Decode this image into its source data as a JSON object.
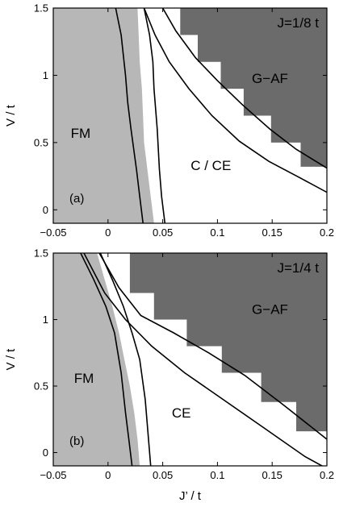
{
  "colors": {
    "fm": "#b7b7b7",
    "gaf": "#6b6b6b",
    "ce": "#ffffff",
    "boundary": "#000000"
  },
  "chart_data": [
    {
      "type": "area",
      "panel": "(a)",
      "annotation": "J=1/8 t",
      "xlabel": "",
      "ylabel": "V / t",
      "xlim": [
        -0.05,
        0.2
      ],
      "ylim": [
        -0.1,
        1.5
      ],
      "xticks": [
        -0.05,
        0,
        0.05,
        0.1,
        0.15,
        0.2
      ],
      "xtick_labels": [
        "−0.05",
        "0",
        "0.05",
        "0.1",
        "0.15",
        "0.2"
      ],
      "yticks": [
        0,
        0.5,
        1,
        1.5
      ],
      "ytick_labels": [
        "0",
        "0.5",
        "1",
        "1.5"
      ],
      "regions": [
        {
          "label": "FM",
          "at": [
            -0.025,
            0.57
          ]
        },
        {
          "label": "C / CE",
          "at": [
            0.094,
            0.33
          ]
        },
        {
          "label": "G−AF",
          "at": [
            0.148,
            0.98
          ]
        }
      ],
      "phase_edges": {
        "fm": [
          [
            0.027,
            1.5
          ],
          [
            0.028,
            1.3
          ],
          [
            0.029,
            1.1
          ],
          [
            0.031,
            0.9
          ],
          [
            0.032,
            0.7
          ],
          [
            0.033,
            0.5
          ],
          [
            0.036,
            0.3
          ],
          [
            0.039,
            0.1
          ],
          [
            0.042,
            -0.1
          ]
        ],
        "gaf": [
          [
            0.052,
            1.5
          ],
          [
            0.066,
            1.3
          ],
          [
            0.082,
            1.1
          ],
          [
            0.103,
            0.9
          ],
          [
            0.124,
            0.7
          ],
          [
            0.149,
            0.5
          ],
          [
            0.176,
            0.32
          ],
          [
            0.2,
            0.15
          ]
        ]
      },
      "boundaries": [
        [
          [
            0.007,
            1.5
          ],
          [
            0.012,
            1.3
          ],
          [
            0.016,
            1.0
          ],
          [
            0.018,
            0.8
          ],
          [
            0.021,
            0.6
          ],
          [
            0.026,
            0.3
          ],
          [
            0.029,
            0.1
          ],
          [
            0.032,
            -0.1
          ]
        ],
        [
          [
            0.033,
            1.5
          ],
          [
            0.038,
            1.3
          ],
          [
            0.041,
            1.1
          ],
          [
            0.042,
            0.9
          ],
          [
            0.045,
            0.6
          ],
          [
            0.047,
            0.3
          ],
          [
            0.049,
            0.1
          ],
          [
            0.052,
            -0.1
          ]
        ],
        [
          [
            0.033,
            1.5
          ],
          [
            0.043,
            1.3
          ],
          [
            0.056,
            1.1
          ],
          [
            0.074,
            0.9
          ],
          [
            0.095,
            0.7
          ],
          [
            0.12,
            0.51
          ],
          [
            0.147,
            0.36
          ],
          [
            0.175,
            0.24
          ],
          [
            0.2,
            0.13
          ]
        ],
        [
          [
            0.05,
            1.5
          ],
          [
            0.062,
            1.33
          ],
          [
            0.08,
            1.13
          ],
          [
            0.1,
            0.96
          ],
          [
            0.123,
            0.78
          ],
          [
            0.148,
            0.6
          ],
          [
            0.172,
            0.45
          ],
          [
            0.2,
            0.31
          ]
        ]
      ]
    },
    {
      "type": "area",
      "panel": "(b)",
      "annotation": "J=1/4 t",
      "xlabel": "J’ / t",
      "ylabel": "V / t",
      "xlim": [
        -0.05,
        0.2
      ],
      "ylim": [
        -0.1,
        1.5
      ],
      "xticks": [
        -0.05,
        0,
        0.05,
        0.1,
        0.15,
        0.2
      ],
      "xtick_labels": [
        "−0.05",
        "0",
        "0.05",
        "0.1",
        "0.15",
        "0.2"
      ],
      "yticks": [
        0,
        0.5,
        1,
        1.5
      ],
      "ytick_labels": [
        "0",
        "0.5",
        "1",
        "1.5"
      ],
      "regions": [
        {
          "label": "FM",
          "at": [
            -0.022,
            0.56
          ]
        },
        {
          "label": "CE",
          "at": [
            0.067,
            0.3
          ]
        },
        {
          "label": "G−AF",
          "at": [
            0.148,
            1.08
          ]
        }
      ],
      "phase_edges": {
        "fm": [
          [
            -0.01,
            1.5
          ],
          [
            -0.003,
            1.3
          ],
          [
            0.004,
            1.1
          ],
          [
            0.01,
            0.9
          ],
          [
            0.015,
            0.7
          ],
          [
            0.02,
            0.5
          ],
          [
            0.024,
            0.3
          ],
          [
            0.027,
            0.1
          ],
          [
            0.029,
            -0.1
          ]
        ],
        "gaf": [
          [
            -0.005,
            1.5
          ],
          [
            0.02,
            1.2
          ],
          [
            0.042,
            1.0
          ],
          [
            0.072,
            0.8
          ],
          [
            0.104,
            0.6
          ],
          [
            0.14,
            0.38
          ],
          [
            0.172,
            0.16
          ],
          [
            0.2,
            -0.02
          ]
        ]
      },
      "boundaries": [
        [
          [
            -0.025,
            1.5
          ],
          [
            -0.013,
            1.3
          ],
          [
            -0.002,
            1.1
          ],
          [
            0.006,
            0.9
          ],
          [
            0.012,
            0.6
          ],
          [
            0.016,
            0.3
          ],
          [
            0.019,
            0.1
          ],
          [
            0.022,
            -0.1
          ]
        ],
        [
          [
            -0.007,
            1.5
          ],
          [
            0.004,
            1.3
          ],
          [
            0.014,
            1.1
          ],
          [
            0.022,
            0.9
          ],
          [
            0.029,
            0.7
          ],
          [
            0.034,
            0.4
          ],
          [
            0.037,
            0.1
          ],
          [
            0.039,
            -0.1
          ]
        ],
        [
          [
            -0.022,
            1.5
          ],
          [
            -0.003,
            1.2
          ],
          [
            0.016,
            1.0
          ],
          [
            0.04,
            0.8
          ],
          [
            0.07,
            0.6
          ],
          [
            0.105,
            0.4
          ],
          [
            0.14,
            0.2
          ],
          [
            0.18,
            -0.03
          ],
          [
            0.2,
            -0.12
          ]
        ],
        [
          [
            -0.008,
            1.5
          ],
          [
            0.01,
            1.24
          ],
          [
            0.03,
            1.03
          ],
          [
            0.06,
            0.9
          ],
          [
            0.092,
            0.75
          ],
          [
            0.125,
            0.58
          ],
          [
            0.16,
            0.36
          ],
          [
            0.2,
            0.1
          ]
        ]
      ]
    }
  ]
}
